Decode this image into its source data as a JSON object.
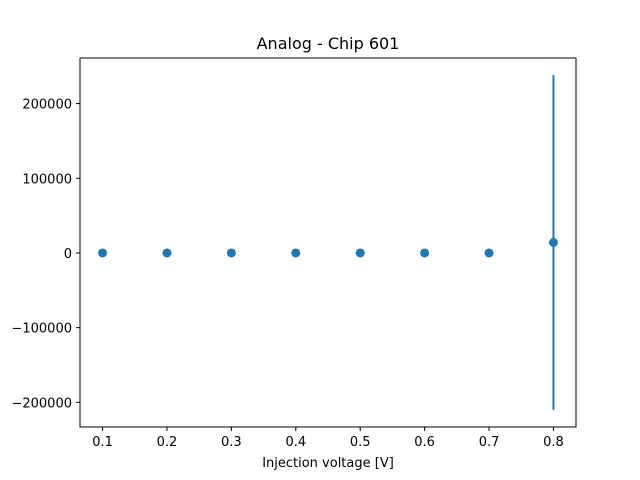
{
  "chart_data": {
    "type": "scatter",
    "title": "Analog - Chip 601",
    "xlabel": "Injection voltage [V]",
    "ylabel": "",
    "xlim": [
      0.065,
      0.835
    ],
    "ylim": [
      -233000,
      261000
    ],
    "xticks": [
      0.1,
      0.2,
      0.3,
      0.4,
      0.5,
      0.6,
      0.7,
      0.8
    ],
    "xtick_labels": [
      "0.1",
      "0.2",
      "0.3",
      "0.4",
      "0.5",
      "0.6",
      "0.7",
      "0.8"
    ],
    "yticks": [
      -200000,
      -100000,
      0,
      100000,
      200000
    ],
    "ytick_labels": [
      "−200000",
      "−100000",
      "0",
      "100000",
      "200000"
    ],
    "grid": false,
    "color": "#1f77b4",
    "series": [
      {
        "x": [
          0.1,
          0.2,
          0.3,
          0.4,
          0.5,
          0.6,
          0.7,
          0.8
        ],
        "y": [
          0,
          0,
          0,
          0,
          0,
          0,
          0,
          14000
        ],
        "yerr": [
          0,
          0,
          0,
          0,
          0,
          0,
          0,
          224000
        ]
      }
    ]
  }
}
